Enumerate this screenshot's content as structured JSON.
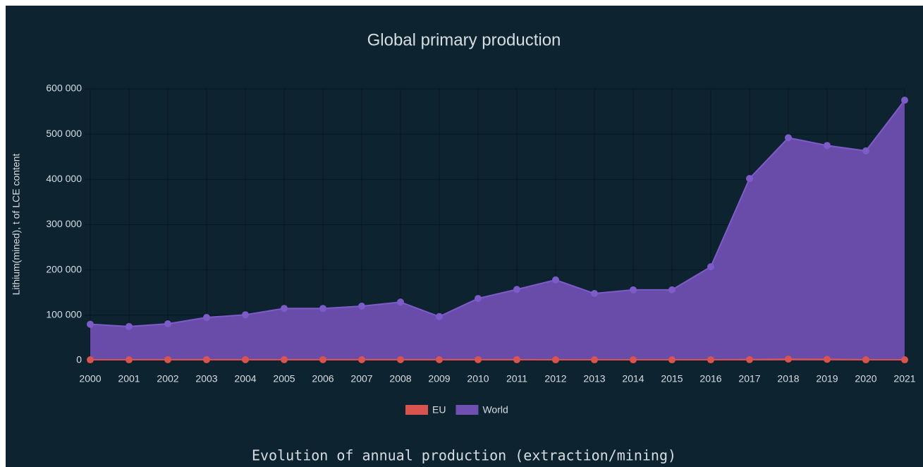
{
  "chart_data": {
    "type": "area",
    "title": "Global primary production",
    "subtitle": "Evolution of annual production (extraction/mining)",
    "y_label": "Lithium(mined), t of LCE content",
    "categories": [
      "2000",
      "2001",
      "2002",
      "2003",
      "2004",
      "2005",
      "2006",
      "2007",
      "2008",
      "2009",
      "2010",
      "2011",
      "2012",
      "2013",
      "2014",
      "2015",
      "2016",
      "2017",
      "2018",
      "2019",
      "2020",
      "2021"
    ],
    "series": [
      {
        "name": "EU",
        "color": "#d9534f",
        "values": [
          1500,
          1500,
          1800,
          1800,
          1800,
          1800,
          1800,
          1800,
          1800,
          1800,
          1800,
          1800,
          1500,
          1500,
          1500,
          1500,
          1500,
          2000,
          3000,
          2500,
          1500,
          1500
        ]
      },
      {
        "name": "World",
        "color": "#6f4fb0",
        "point_color": "#7d5bc9",
        "values": [
          80000,
          75000,
          81000,
          95000,
          101000,
          115000,
          115000,
          120000,
          129000,
          97000,
          137000,
          157000,
          178000,
          148000,
          156000,
          156000,
          207000,
          402000,
          492000,
          475000,
          463000,
          575000
        ]
      }
    ],
    "ylim": [
      0,
      600000
    ],
    "yticks": [
      0,
      {
        "value": 100000,
        "label": "100 000"
      },
      {
        "value": 200000,
        "label": "200 000"
      },
      {
        "value": 300000,
        "label": "300 000"
      },
      {
        "value": 400000,
        "label": "400 000"
      },
      {
        "value": 500000,
        "label": "500 000"
      },
      {
        "value": 600000,
        "label": "600 000"
      }
    ],
    "grid": true,
    "legend": "bottom"
  }
}
